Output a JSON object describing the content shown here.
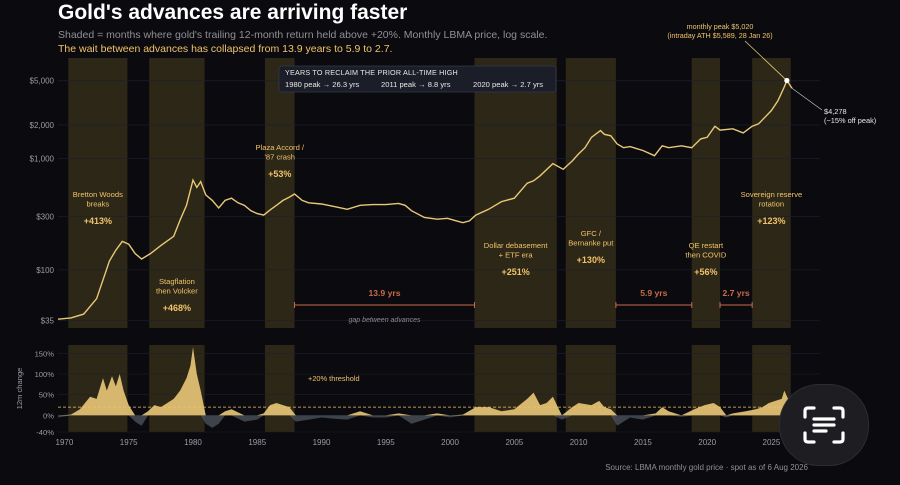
{
  "title": "Gold's advances are arriving faster",
  "subtitle": "Shaded = months where gold's trailing 12-month return held above +20%. Monthly LBMA price, log scale.",
  "subtitle2": "The wait between advances has collapsed from 13.9 years to 5.9 to 2.7.",
  "source": "Source: LBMA monthly gold price · spot as of 6 Aug 2026",
  "colors": {
    "background": "#0b0b0f",
    "shade": "#3a311c",
    "line": "#e9c877",
    "accent": "#f0c36a",
    "gap": "#c96a4a",
    "neg": "#4a505a"
  },
  "infobox": {
    "title": "YEARS TO RECLAIM THE PRIOR ALL-TIME HIGH",
    "items": [
      "1980 peak → 26.3 yrs",
      "2011 peak → 8.8 yrs",
      "2020 peak → 2.7 yrs"
    ]
  },
  "peak_callout": {
    "line1": "monthly peak $5,020",
    "line2": "(intraday ATH $5,589, 28 Jan 26)"
  },
  "current_callout": {
    "line1": "$4,278",
    "line2": "(−15% off peak)"
  },
  "scan_icon": "scan-text-icon",
  "chart_data": [
    {
      "type": "line",
      "scale": "log",
      "ylim": [
        30,
        8000
      ],
      "xlim": [
        1969.5,
        2028.0
      ],
      "y_ticks": [
        35,
        100,
        300,
        1000,
        2000,
        5000
      ],
      "y_tick_labels": [
        "$35",
        "$100",
        "$300",
        "$1,000",
        "$2,000",
        "$5,000"
      ],
      "series": [
        {
          "x": [
            1969.5,
            1970.5,
            1971.5,
            1972.5,
            1973.2,
            1973.5,
            1974.0,
            1974.5,
            1975.0,
            1975.5,
            1976.0,
            1976.7,
            1977.5,
            1978.5,
            1979.0,
            1979.5,
            1980.0,
            1980.3,
            1980.6,
            1981.0,
            1981.5,
            1982.0,
            1982.5,
            1983.0,
            1983.5,
            1984.0,
            1984.5,
            1985.0,
            1985.5,
            1986.0,
            1986.5,
            1987.0,
            1987.5,
            1987.9,
            1988.5,
            1989.0,
            1990.0,
            1991.0,
            1992.0,
            1993.0,
            1994.0,
            1995.0,
            1996.0,
            1996.5,
            1997.0,
            1998.0,
            1999.0,
            1999.8,
            2000.5,
            2001.0,
            2001.5,
            2002.0,
            2003.0,
            2004.0,
            2005.0,
            2006.0,
            2006.5,
            2007.0,
            2008.0,
            2008.8,
            2009.5,
            2010.0,
            2010.5,
            2011.0,
            2011.7,
            2012.0,
            2012.5,
            2013.0,
            2013.5,
            2014.0,
            2015.0,
            2015.9,
            2016.5,
            2017.0,
            2018.0,
            2018.8,
            2019.5,
            2020.0,
            2020.6,
            2021.0,
            2022.0,
            2022.8,
            2023.5,
            2024.0,
            2024.5,
            2025.0,
            2025.5,
            2026.0,
            2026.2,
            2026.6
          ],
          "y": [
            36,
            37,
            40,
            55,
            95,
            120,
            150,
            180,
            170,
            140,
            125,
            140,
            165,
            200,
            280,
            380,
            640,
            550,
            620,
            470,
            420,
            360,
            420,
            440,
            400,
            380,
            340,
            320,
            310,
            345,
            380,
            420,
            450,
            480,
            420,
            400,
            390,
            370,
            350,
            380,
            385,
            385,
            395,
            380,
            340,
            295,
            285,
            290,
            275,
            265,
            275,
            310,
            350,
            410,
            440,
            600,
            630,
            700,
            900,
            800,
            950,
            1100,
            1250,
            1550,
            1780,
            1650,
            1600,
            1350,
            1250,
            1280,
            1180,
            1060,
            1300,
            1250,
            1300,
            1250,
            1500,
            1550,
            1950,
            1800,
            1850,
            1700,
            1950,
            2050,
            2350,
            2700,
            3300,
            4400,
            5020,
            4278
          ]
        }
      ],
      "advances": [
        {
          "start": 1970.3,
          "end": 1974.9,
          "label": "Bretton Woods breaks",
          "gain": "+413%"
        },
        {
          "start": 1976.6,
          "end": 1980.9,
          "label": "Stagflation then Volcker",
          "gain": "+468%"
        },
        {
          "start": 1985.6,
          "end": 1987.9,
          "label": "Plaza Accord / '87 crash",
          "gain": "+53%"
        },
        {
          "start": 2001.9,
          "end": 2008.3,
          "label": "Dollar debasement + ETF era",
          "gain": "+251%"
        },
        {
          "start": 2009.0,
          "end": 2012.9,
          "label": "GFC / Bernanke put",
          "gain": "+130%"
        },
        {
          "start": 2018.8,
          "end": 2021.0,
          "label": "QE restart then COVID",
          "gain": "+56%"
        },
        {
          "start": 2023.5,
          "end": 2026.5,
          "label": "Sovereign reserve rotation",
          "gain": "+123%"
        }
      ],
      "gaps": [
        {
          "start": 1987.9,
          "end": 2001.9,
          "label": "13.9 yrs"
        },
        {
          "start": 2012.9,
          "end": 2018.8,
          "label": "5.9 yrs"
        },
        {
          "start": 2021.0,
          "end": 2023.5,
          "label": "2.7 yrs"
        }
      ],
      "gap_caption": "gap between advances"
    },
    {
      "type": "area",
      "ylabel": "12m change",
      "ylim": [
        -40,
        170
      ],
      "y_ticks": [
        -40,
        0,
        50,
        100,
        150
      ],
      "y_tick_labels": [
        "-40%",
        "0%",
        "50%",
        "100%",
        "150%"
      ],
      "x_ticks": [
        1970,
        1975,
        1980,
        1985,
        1990,
        1995,
        2000,
        2005,
        2010,
        2015,
        2020,
        2025
      ],
      "threshold": 20,
      "threshold_label": "+20% threshold",
      "series": [
        {
          "x": [
            1969.5,
            1970.5,
            1971.2,
            1972.0,
            1972.5,
            1973.0,
            1973.3,
            1973.7,
            1974.0,
            1974.3,
            1974.6,
            1975.0,
            1975.5,
            1976.0,
            1976.5,
            1977.0,
            1977.5,
            1978.0,
            1978.5,
            1979.0,
            1979.5,
            1979.8,
            1980.0,
            1980.3,
            1980.6,
            1981.0,
            1981.5,
            1982.0,
            1982.5,
            1983.0,
            1984.0,
            1985.0,
            1985.5,
            1986.0,
            1986.5,
            1987.0,
            1987.5,
            1988.0,
            1989.0,
            1990.0,
            1991.0,
            1992.0,
            1993.0,
            1994.0,
            1995.0,
            1996.0,
            1997.0,
            1998.0,
            1999.0,
            2000.0,
            2001.0,
            2002.0,
            2003.0,
            2004.0,
            2005.0,
            2006.0,
            2006.5,
            2007.0,
            2007.5,
            2008.0,
            2008.7,
            2009.5,
            2010.0,
            2011.0,
            2011.6,
            2012.0,
            2012.5,
            2013.0,
            2013.5,
            2014.0,
            2015.0,
            2016.0,
            2016.5,
            2017.0,
            2018.0,
            2019.0,
            2019.8,
            2020.5,
            2021.0,
            2021.5,
            2022.0,
            2023.0,
            2023.8,
            2024.3,
            2024.8,
            2025.3,
            2025.8,
            2026.0,
            2026.3,
            2026.6
          ],
          "y": [
            -5,
            2,
            15,
            45,
            40,
            90,
            60,
            95,
            70,
            100,
            60,
            25,
            -15,
            -25,
            10,
            25,
            20,
            30,
            40,
            60,
            90,
            120,
            165,
            100,
            60,
            -20,
            -30,
            -20,
            10,
            15,
            -15,
            -10,
            5,
            25,
            30,
            25,
            20,
            -15,
            -10,
            -5,
            -8,
            -10,
            10,
            -5,
            -5,
            5,
            -20,
            -10,
            5,
            -5,
            2,
            20,
            20,
            10,
            15,
            40,
            55,
            25,
            30,
            45,
            -10,
            20,
            30,
            25,
            35,
            20,
            15,
            -25,
            -15,
            -5,
            -10,
            5,
            20,
            10,
            -3,
            15,
            25,
            30,
            20,
            -5,
            5,
            10,
            15,
            20,
            30,
            35,
            40,
            60,
            40,
            15
          ]
        }
      ]
    }
  ]
}
